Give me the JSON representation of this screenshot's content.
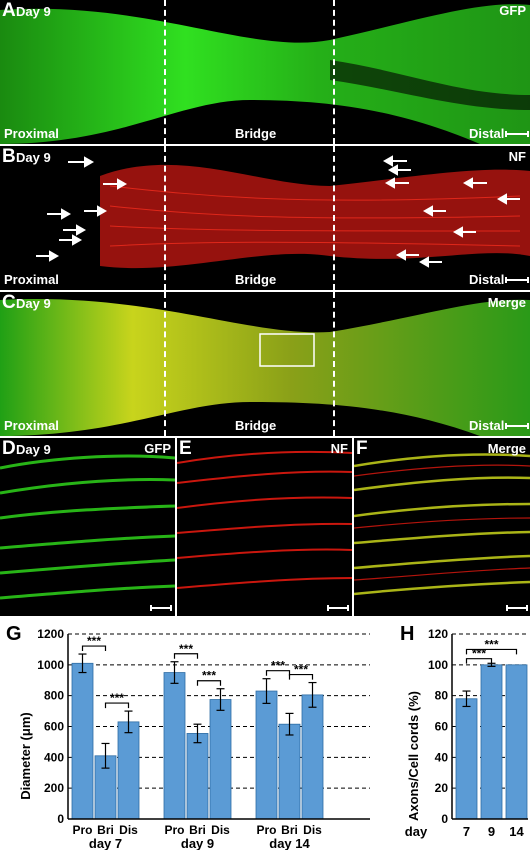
{
  "panels": {
    "A": {
      "letter": "A",
      "day": "Day 9",
      "stain": "GFP",
      "left": "Proximal",
      "mid": "Bridge",
      "right": "Distal"
    },
    "B": {
      "letter": "B",
      "day": "Day 9",
      "stain": "NF",
      "left": "Proximal",
      "mid": "Bridge",
      "right": "Distal"
    },
    "C": {
      "letter": "C",
      "day": "Day 9",
      "stain": "Merge",
      "left": "Proximal",
      "mid": "Bridge",
      "right": "Distal"
    },
    "D": {
      "letter": "D",
      "day": "Day 9",
      "stain": "GFP"
    },
    "E": {
      "letter": "E",
      "stain": "NF"
    },
    "F": {
      "letter": "F",
      "stain": "Merge"
    },
    "G": {
      "letter": "G"
    },
    "H": {
      "letter": "H"
    }
  },
  "colors": {
    "gfp": "#2fd41c",
    "nf": "#e01a10",
    "merge": "#c8d41c",
    "bar": "#5b9bd5",
    "bar_edge": "#2e6da4"
  },
  "chart_data": [
    {
      "type": "bar",
      "panel": "G",
      "ylabel": "Diameter (μm)",
      "ylim": [
        0,
        1200
      ],
      "yticks": [
        0,
        200,
        400,
        600,
        800,
        1000,
        1200
      ],
      "grid": "dashed horizontal",
      "groups": [
        "day 7",
        "day 9",
        "day 14"
      ],
      "categories": [
        "Pro",
        "Bri",
        "Dis"
      ],
      "values": [
        [
          1010,
          410,
          630
        ],
        [
          950,
          555,
          775
        ],
        [
          830,
          615,
          805
        ]
      ],
      "errors": [
        [
          60,
          80,
          70
        ],
        [
          70,
          60,
          70
        ],
        [
          80,
          70,
          80
        ]
      ],
      "significance": [
        {
          "group": 0,
          "from": 0,
          "to": 1,
          "label": "***"
        },
        {
          "group": 0,
          "from": 1,
          "to": 2,
          "label": "***"
        },
        {
          "group": 1,
          "from": 0,
          "to": 1,
          "label": "***"
        },
        {
          "group": 1,
          "from": 1,
          "to": 2,
          "label": "***"
        },
        {
          "group": 2,
          "from": 0,
          "to": 1,
          "label": "***"
        },
        {
          "group": 2,
          "from": 1,
          "to": 2,
          "label": "***"
        }
      ]
    },
    {
      "type": "bar",
      "panel": "H",
      "ylabel": "Axons/Cell cords (%)",
      "ylim": [
        0,
        120
      ],
      "yticks": [
        0,
        20,
        40,
        60,
        80,
        100,
        120
      ],
      "grid": "dashed horizontal",
      "xaxis_title": "day",
      "categories": [
        "7",
        "9",
        "14"
      ],
      "values": [
        78,
        100,
        100
      ],
      "errors": [
        5,
        1,
        0
      ],
      "significance": [
        {
          "from": 0,
          "to": 1,
          "label": "***"
        },
        {
          "from": 0,
          "to": 2,
          "label": "***"
        }
      ]
    }
  ]
}
